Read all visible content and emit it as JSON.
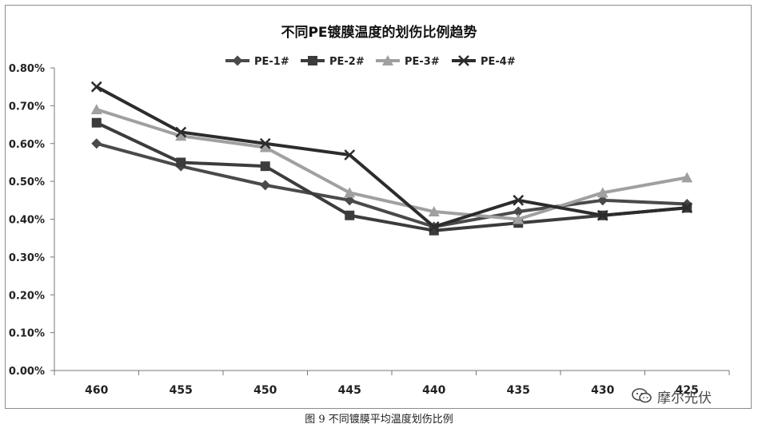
{
  "chart_data": {
    "type": "line",
    "title": "不同PE镀膜温度的划伤比例趋势",
    "categories": [
      "460",
      "455",
      "450",
      "445",
      "440",
      "435",
      "430",
      "425"
    ],
    "y_tick_labels": [
      "0.00%",
      "0.10%",
      "0.20%",
      "0.30%",
      "0.40%",
      "0.50%",
      "0.60%",
      "0.70%",
      "0.80%"
    ],
    "ylim": [
      0,
      0.8
    ],
    "y_unit": "%",
    "grid": false,
    "legend_position": "top",
    "series": [
      {
        "name": "PE-1#",
        "marker": "diamond",
        "color": "#4a4a4a",
        "values": [
          0.6,
          0.54,
          0.49,
          0.45,
          0.38,
          0.42,
          0.45,
          0.44
        ]
      },
      {
        "name": "PE-2#",
        "marker": "square",
        "color": "#3c3c3c",
        "values": [
          0.655,
          0.55,
          0.54,
          0.41,
          0.37,
          0.39,
          0.41,
          0.43
        ]
      },
      {
        "name": "PE-3#",
        "marker": "triangle",
        "color": "#a0a0a0",
        "values": [
          0.69,
          0.62,
          0.59,
          0.47,
          0.42,
          0.4,
          0.47,
          0.51
        ]
      },
      {
        "name": "PE-4#",
        "marker": "x",
        "color": "#2c2c2c",
        "values": [
          0.75,
          0.63,
          0.6,
          0.57,
          0.38,
          0.45,
          0.41,
          0.43
        ]
      }
    ]
  },
  "caption": "图 9 不同镀膜平均温度划伤比例",
  "watermark": {
    "text": "摩尔光伏",
    "icon": "wechat-icon"
  }
}
